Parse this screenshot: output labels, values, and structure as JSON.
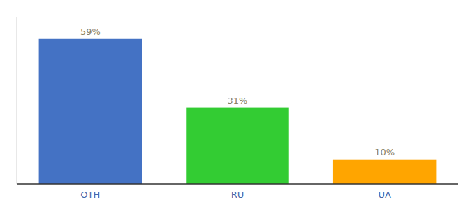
{
  "chart_data": {
    "type": "bar",
    "categories": [
      "OTH",
      "RU",
      "UA"
    ],
    "values": [
      59,
      31,
      10
    ],
    "value_labels": [
      "59%",
      "31%",
      "10%"
    ],
    "colors": [
      "#4472C4",
      "#33CC33",
      "#FFA500"
    ],
    "ylim": [
      0,
      68
    ],
    "data_labels": true,
    "tick_labels": "x",
    "grid": false
  }
}
